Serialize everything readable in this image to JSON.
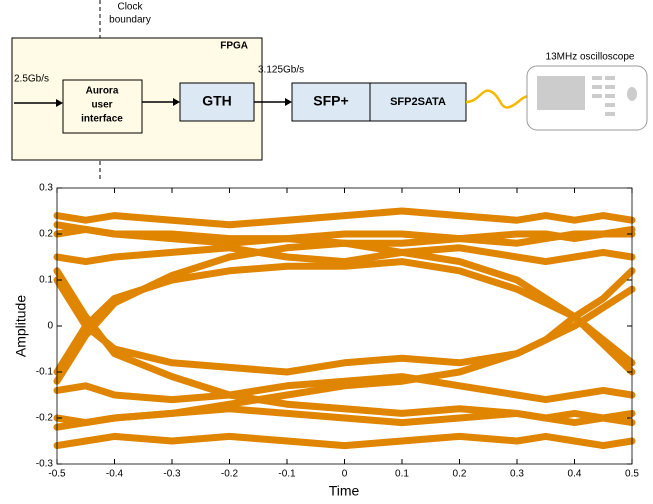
{
  "diagram": {
    "clock_boundary": [
      "Clock",
      "boundary"
    ],
    "fpga": "FPGA",
    "input_rate": "2.5Gb/s",
    "aurora": [
      "Aurora",
      "user",
      "interface"
    ],
    "gth": "GTH",
    "link_rate": "3.125Gb/s",
    "sfp": "SFP+",
    "sfp2sata": "SFP2SATA",
    "oscilloscope": "13MHz oscilloscope"
  },
  "chart_data": {
    "type": "line",
    "xlabel": "Time",
    "ylabel": "Amplitude",
    "color": "#df8500",
    "xlim": [
      -0.5,
      0.5
    ],
    "ylim": [
      -0.3,
      0.3
    ],
    "xticks": [
      -0.5,
      -0.4,
      -0.3,
      -0.2,
      -0.1,
      0,
      0.1,
      0.2,
      0.3,
      0.4,
      0.5
    ],
    "yticks": [
      -0.3,
      -0.2,
      -0.1,
      0,
      0.1,
      0.2,
      0.3
    ],
    "x": [
      -0.5,
      -0.45,
      -0.4,
      -0.3,
      -0.2,
      -0.1,
      0,
      0.1,
      0.2,
      0.3,
      0.35,
      0.4,
      0.45,
      0.5
    ],
    "series": [
      {
        "values": [
          0.2,
          0.21,
          0.2,
          0.19,
          0.18,
          0.19,
          0.2,
          0.2,
          0.19,
          0.18,
          0.19,
          0.2,
          0.2,
          0.21
        ]
      },
      {
        "values": [
          0.15,
          0.14,
          0.15,
          0.16,
          0.17,
          0.15,
          0.14,
          0.16,
          0.17,
          0.15,
          0.14,
          0.15,
          0.16,
          0.15
        ]
      },
      {
        "values": [
          -0.2,
          -0.21,
          -0.2,
          -0.19,
          -0.18,
          -0.19,
          -0.2,
          -0.21,
          -0.2,
          -0.19,
          -0.2,
          -0.21,
          -0.2,
          -0.19
        ]
      },
      {
        "values": [
          -0.14,
          -0.13,
          -0.15,
          -0.16,
          -0.15,
          -0.13,
          -0.12,
          -0.11,
          -0.13,
          -0.15,
          -0.16,
          -0.15,
          -0.14,
          -0.15
        ]
      },
      {
        "values": [
          -0.1,
          0,
          0.06,
          0.1,
          0.12,
          0.13,
          0.13,
          0.14,
          0.12,
          0.08,
          0.05,
          0.02,
          -0.03,
          -0.08
        ]
      },
      {
        "values": [
          0.1,
          0,
          -0.05,
          -0.08,
          -0.09,
          -0.1,
          -0.08,
          -0.07,
          -0.08,
          -0.06,
          -0.03,
          0,
          0.04,
          0.08
        ]
      },
      {
        "values": [
          -0.12,
          -0.02,
          0.05,
          0.11,
          0.15,
          0.17,
          0.18,
          0.18,
          0.19,
          0.2,
          0.2,
          0.19,
          0.2,
          0.2
        ]
      },
      {
        "values": [
          0.12,
          0.02,
          -0.06,
          -0.11,
          -0.15,
          -0.17,
          -0.18,
          -0.19,
          -0.18,
          -0.19,
          -0.2,
          -0.19,
          -0.2,
          -0.21
        ]
      },
      {
        "values": [
          0.22,
          0.21,
          0.2,
          0.2,
          0.19,
          0.19,
          0.18,
          0.16,
          0.14,
          0.1,
          0.06,
          0.02,
          -0.04,
          -0.1
        ]
      },
      {
        "values": [
          -0.22,
          -0.21,
          -0.2,
          -0.19,
          -0.17,
          -0.15,
          -0.13,
          -0.12,
          -0.1,
          -0.06,
          -0.03,
          0.02,
          0.06,
          0.12
        ]
      },
      {
        "values": [
          0.24,
          0.23,
          0.24,
          0.23,
          0.22,
          0.23,
          0.24,
          0.25,
          0.24,
          0.23,
          0.24,
          0.23,
          0.24,
          0.23
        ]
      },
      {
        "values": [
          -0.26,
          -0.25,
          -0.24,
          -0.25,
          -0.24,
          -0.25,
          -0.26,
          -0.25,
          -0.24,
          -0.25,
          -0.24,
          -0.25,
          -0.26,
          -0.25
        ]
      }
    ]
  }
}
